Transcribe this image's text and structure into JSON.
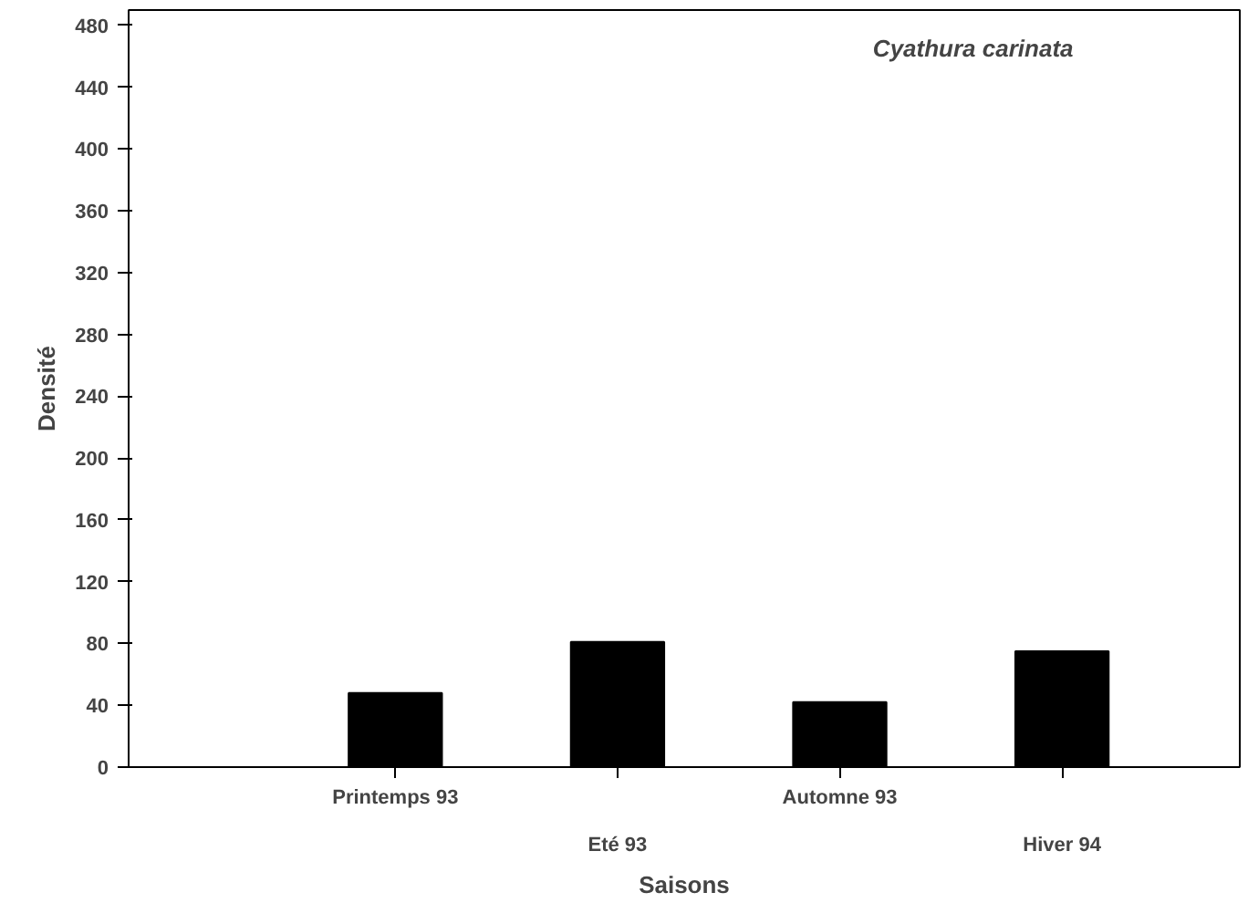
{
  "chart_data": {
    "type": "bar",
    "title": "Cyathura carinata",
    "xlabel": "Saisons",
    "ylabel": "Densité",
    "categories": [
      "Printemps 93",
      "Eté 93",
      "Automne 93",
      "Hiver 94"
    ],
    "values": [
      48,
      81,
      42,
      75
    ],
    "color": "#000000",
    "ylim": [
      0,
      490
    ],
    "yticks": [
      0,
      40,
      80,
      120,
      160,
      200,
      240,
      280,
      320,
      360,
      400,
      440,
      480
    ],
    "grid": false
  }
}
